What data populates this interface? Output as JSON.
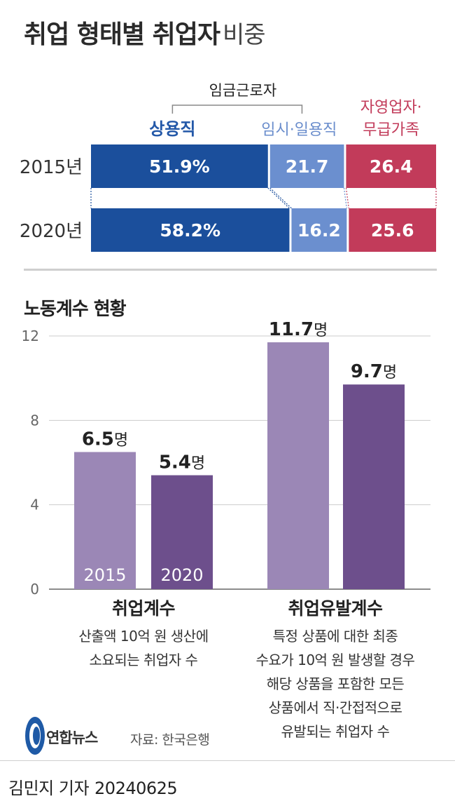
{
  "title": {
    "main": "취업 형태별 취업자",
    "sub": "비중"
  },
  "employment_share": {
    "group_label": "임금근로자",
    "columns": [
      {
        "label": "상용직",
        "color": "#1b4f9c"
      },
      {
        "label": "임시·일용직",
        "color": "#6b8fcf"
      },
      {
        "label": "자영업자·무급가족",
        "color": "#c23b5a"
      }
    ],
    "colors": {
      "regular": "#1b4f9c",
      "temporary": "#6b8fcf",
      "self_employed": "#c23b5a",
      "label_regular": "#2358a8",
      "label_temporary": "#6a8dcc",
      "label_self": "#c23b5a"
    }
  },
  "labor_coefficient": {
    "title": "노동계수 현황",
    "groups": [
      {
        "label": "취업계수",
        "description": [
          "산출액 10억 원 생산에",
          "소요되는 취업자 수"
        ]
      },
      {
        "label": "취업유발계수",
        "description": [
          "특정 상품에 대한 최종",
          "수요가 10억 원 발생할 경우",
          "해당 상품을 포함한 모든",
          "상품에서 직·간접적으로",
          "유발되는 취업자 수"
        ]
      }
    ],
    "colors": {
      "2015": "#9b87b6",
      "2020": "#6d4f8c"
    }
  },
  "chart_data": [
    {
      "type": "bar",
      "orientation": "horizontal",
      "stacked": true,
      "unit": "%",
      "categories": [
        "2015년",
        "2020년"
      ],
      "series": [
        {
          "name": "상용직",
          "values": [
            51.9,
            58.2
          ]
        },
        {
          "name": "임시·일용직",
          "values": [
            21.7,
            16.2
          ]
        },
        {
          "name": "자영업자·무급가족",
          "values": [
            26.4,
            25.6
          ]
        }
      ],
      "data_labels": [
        [
          "51.9%",
          "21.7",
          "26.4"
        ],
        [
          "58.2%",
          "16.2",
          "25.6"
        ]
      ]
    },
    {
      "type": "bar",
      "title": "노동계수 현황",
      "unit": "명",
      "categories": [
        "취업계수",
        "취업유발계수"
      ],
      "series": [
        {
          "name": "2015",
          "values": [
            6.5,
            11.7
          ]
        },
        {
          "name": "2020",
          "values": [
            5.4,
            9.7
          ]
        }
      ],
      "ylim": [
        0,
        12
      ],
      "yticks": [
        "0",
        "4",
        "8",
        "12"
      ],
      "grid": true
    }
  ],
  "brand": {
    "name": "연합뉴스"
  },
  "source": "자료: 한국은행",
  "author": {
    "name": "김민지 기자",
    "date": "20240625"
  }
}
